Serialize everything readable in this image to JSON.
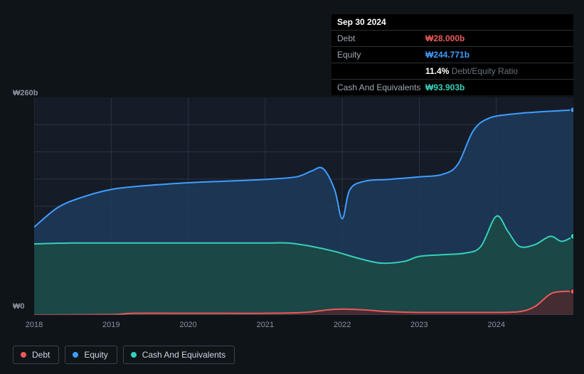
{
  "tooltip": {
    "date": "Sep 30 2024",
    "debt_label": "Debt",
    "debt_value": "₩28.000b",
    "equity_label": "Equity",
    "equity_value": "₩244.771b",
    "ratio_pct": "11.4%",
    "ratio_label": "Debt/Equity Ratio",
    "cash_label": "Cash And Equivalents",
    "cash_value": "₩93.903b"
  },
  "chart": {
    "type": "area",
    "background_color": "#0f1419",
    "plot_background": "#151c28",
    "y_top_label": "₩260b",
    "y_bottom_label": "₩0",
    "ymin": 0,
    "ymax": 260,
    "xmin": 2018,
    "xmax": 2025,
    "x_ticks": [
      "2018",
      "2019",
      "2020",
      "2021",
      "2022",
      "2023",
      "2024"
    ],
    "grid_color": "#2a3340",
    "grid_rows": 8,
    "series": {
      "equity": {
        "label": "Equity",
        "stroke": "#3f9eff",
        "fill": "#1d3a5a",
        "fill_opacity": 0.85,
        "points": [
          [
            2018.0,
            105
          ],
          [
            2018.3,
            128
          ],
          [
            2018.6,
            140
          ],
          [
            2019.0,
            150
          ],
          [
            2019.5,
            155
          ],
          [
            2020.0,
            158
          ],
          [
            2020.5,
            160
          ],
          [
            2021.0,
            162
          ],
          [
            2021.4,
            165
          ],
          [
            2021.6,
            172
          ],
          [
            2021.75,
            175
          ],
          [
            2021.9,
            150
          ],
          [
            2022.0,
            115
          ],
          [
            2022.1,
            150
          ],
          [
            2022.3,
            160
          ],
          [
            2022.6,
            162
          ],
          [
            2023.0,
            165
          ],
          [
            2023.3,
            168
          ],
          [
            2023.5,
            180
          ],
          [
            2023.7,
            220
          ],
          [
            2023.9,
            235
          ],
          [
            2024.2,
            240
          ],
          [
            2024.6,
            243
          ],
          [
            2025.0,
            245
          ]
        ],
        "end_marker": true
      },
      "cash": {
        "label": "Cash And Equivalents",
        "stroke": "#35d0ba",
        "fill": "#1b4a44",
        "fill_opacity": 0.85,
        "points": [
          [
            2018.0,
            85
          ],
          [
            2018.5,
            86
          ],
          [
            2019.0,
            86
          ],
          [
            2019.5,
            86
          ],
          [
            2020.0,
            86
          ],
          [
            2020.5,
            86
          ],
          [
            2021.0,
            86
          ],
          [
            2021.3,
            86
          ],
          [
            2021.6,
            82
          ],
          [
            2021.9,
            76
          ],
          [
            2022.2,
            68
          ],
          [
            2022.5,
            62
          ],
          [
            2022.8,
            64
          ],
          [
            2023.0,
            70
          ],
          [
            2023.3,
            72
          ],
          [
            2023.6,
            74
          ],
          [
            2023.8,
            82
          ],
          [
            2024.0,
            118
          ],
          [
            2024.15,
            100
          ],
          [
            2024.3,
            82
          ],
          [
            2024.5,
            84
          ],
          [
            2024.7,
            94
          ],
          [
            2024.85,
            88
          ],
          [
            2025.0,
            94
          ]
        ],
        "end_marker": true
      },
      "debt": {
        "label": "Debt",
        "stroke": "#ec5a5a",
        "fill": "#4a2830",
        "fill_opacity": 0.9,
        "points": [
          [
            2018.0,
            0
          ],
          [
            2019.0,
            0.5
          ],
          [
            2019.3,
            2
          ],
          [
            2020.0,
            2
          ],
          [
            2020.5,
            2
          ],
          [
            2021.0,
            2
          ],
          [
            2021.5,
            3
          ],
          [
            2021.8,
            6
          ],
          [
            2022.0,
            7
          ],
          [
            2022.3,
            6
          ],
          [
            2022.6,
            4
          ],
          [
            2023.0,
            3
          ],
          [
            2023.5,
            3
          ],
          [
            2024.0,
            3
          ],
          [
            2024.3,
            4
          ],
          [
            2024.5,
            10
          ],
          [
            2024.7,
            25
          ],
          [
            2024.85,
            28
          ],
          [
            2025.0,
            28
          ]
        ],
        "end_marker": true
      }
    }
  },
  "legend": {
    "items": [
      {
        "key": "debt",
        "label": "Debt",
        "color": "#ec5a5a"
      },
      {
        "key": "equity",
        "label": "Equity",
        "color": "#3f9eff"
      },
      {
        "key": "cash",
        "label": "Cash And Equivalents",
        "color": "#35d0ba"
      }
    ]
  },
  "colors": {
    "debt": "#ec5a5a",
    "equity": "#3f9eff",
    "cash": "#35d0ba"
  }
}
